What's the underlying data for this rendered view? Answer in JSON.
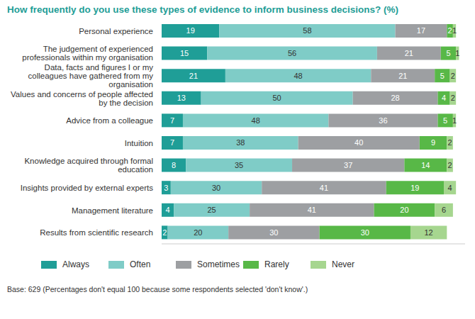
{
  "chart_data": {
    "type": "bar",
    "title": "How frequently do you use these types of evidence to inform business decisions? (%)",
    "categories": [
      "Personal experience",
      "The judgement of experienced professionals within my organisation",
      "Data, facts and figures I or my colleagues have gathered from my organisation",
      "Values and concerns of people affected by the decision",
      "Advice from a colleague",
      "Intuition",
      "Knowledge acquired through formal education",
      "Insights provided by external experts",
      "Management literature",
      "Results from scientific research"
    ],
    "series": [
      {
        "name": "Always",
        "color": "#1f9e97",
        "values": [
          19,
          15,
          21,
          13,
          7,
          7,
          8,
          3,
          4,
          2
        ]
      },
      {
        "name": "Often",
        "color": "#7fccc7",
        "values": [
          58,
          56,
          48,
          50,
          48,
          38,
          35,
          30,
          25,
          20
        ]
      },
      {
        "name": "Sometimes",
        "color": "#9d9fa2",
        "values": [
          17,
          21,
          21,
          28,
          36,
          40,
          37,
          41,
          41,
          30
        ]
      },
      {
        "name": "Rarely",
        "color": "#58b847",
        "values": [
          2,
          5,
          5,
          4,
          5,
          9,
          14,
          19,
          20,
          30
        ]
      },
      {
        "name": "Never",
        "color": "#a6d68f",
        "values": [
          1,
          1,
          2,
          2,
          1,
          2,
          2,
          4,
          6,
          12
        ]
      }
    ],
    "xlim": [
      0,
      100
    ],
    "orientation": "horizontal",
    "stacked": true,
    "data_labels": true,
    "tick_labels": "y",
    "legend": "bottom",
    "annotations": [
      "Base: 629 (Percentages don't equal 100 because some respondents selected 'don't know'.)"
    ]
  }
}
